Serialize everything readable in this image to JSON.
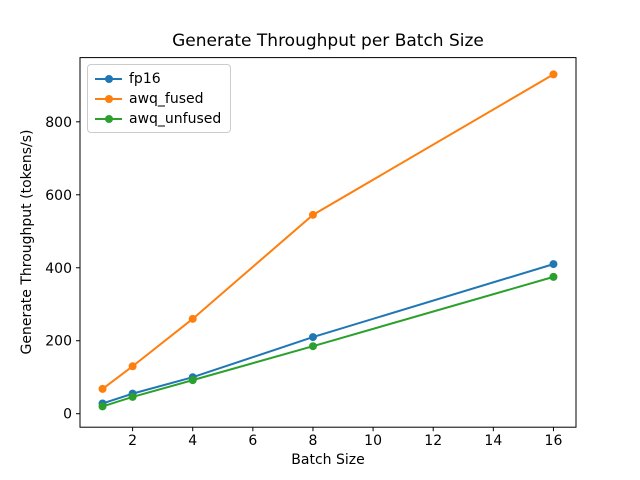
{
  "figure": {
    "background": "#ffffff",
    "axis_color": "#000000",
    "text_color": "#000000",
    "legend_border_color": "#cccccc"
  },
  "chart_data": {
    "type": "line",
    "title": "Generate Throughput per Batch Size",
    "xlabel": "Batch Size",
    "ylabel": "Generate Throughput (tokens/s)",
    "x": [
      1,
      2,
      4,
      8,
      16
    ],
    "series": [
      {
        "name": "fp16",
        "color": "#1f77b4",
        "values": [
          28,
          55,
          100,
          210,
          410
        ]
      },
      {
        "name": "awq_fused",
        "color": "#ff7f0e",
        "values": [
          68,
          130,
          260,
          545,
          930
        ]
      },
      {
        "name": "awq_unfused",
        "color": "#2ca02c",
        "values": [
          20,
          46,
          92,
          185,
          375
        ]
      }
    ],
    "xticks": [
      2,
      4,
      6,
      8,
      10,
      12,
      14,
      16
    ],
    "yticks": [
      0,
      200,
      400,
      600,
      800
    ],
    "xlim": [
      0.25,
      16.75
    ],
    "ylim": [
      -37,
      976
    ],
    "grid": false,
    "legend_position": "upper left",
    "legend_entries": [
      "fp16",
      "awq_fused",
      "awq_unfused"
    ],
    "marker": "circle"
  }
}
